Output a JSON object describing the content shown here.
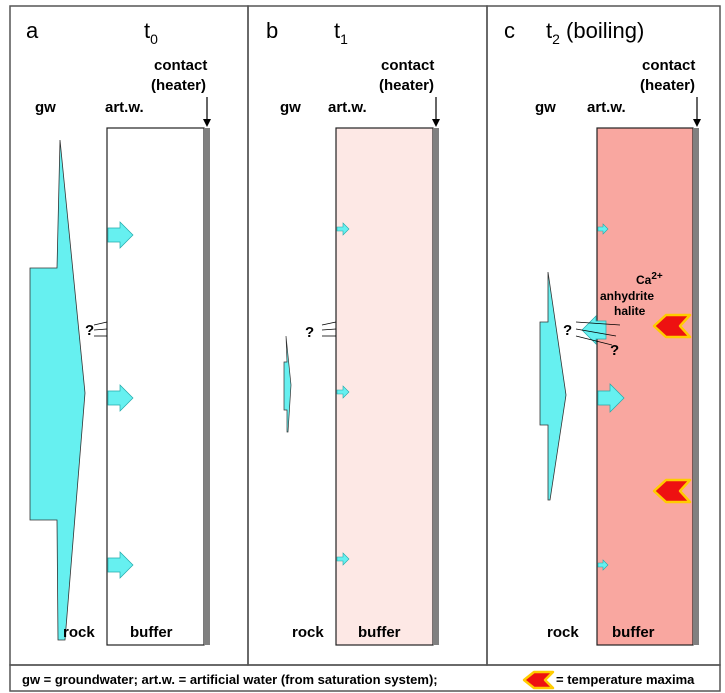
{
  "panels": [
    {
      "letter": "a",
      "time": {
        "base": "t",
        "sub": "0",
        "suffix": ""
      },
      "contact_line1": "contact",
      "contact_line2": "(heater)",
      "gw": "gw",
      "artw": "art.w.",
      "rock": "rock",
      "buffer": "buffer",
      "question": "?",
      "buffer_color": "#ffffff"
    },
    {
      "letter": "b",
      "time": {
        "base": "t",
        "sub": "1",
        "suffix": ""
      },
      "contact_line1": "contact",
      "contact_line2": "(heater)",
      "gw": "gw",
      "artw": "art.w.",
      "rock": "rock",
      "buffer": "buffer",
      "question": "?",
      "buffer_color": "#fde8e5"
    },
    {
      "letter": "c",
      "time": {
        "base": "t",
        "sub": "2",
        "suffix": " (boiling)"
      },
      "contact_line1": "contact",
      "contact_line2": "(heater)",
      "gw": "gw",
      "artw": "art.w.",
      "rock": "rock",
      "buffer": "buffer",
      "question": "?",
      "question2": "?",
      "buffer_color": "#f9a7a0",
      "mineral_ca": "Ca",
      "mineral_ca_sup": "2+",
      "mineral_anhydrite": "anhydrite",
      "mineral_halite": "halite"
    }
  ],
  "legend": {
    "part1": "gw = groundwater;  art.w. = artificial water (from saturation system);",
    "part2": "= temperature maxima"
  },
  "colors": {
    "water": "#66f0f0",
    "heater": "#808080",
    "temp_fill": "#ee1111",
    "temp_edge": "#ffcc00"
  }
}
